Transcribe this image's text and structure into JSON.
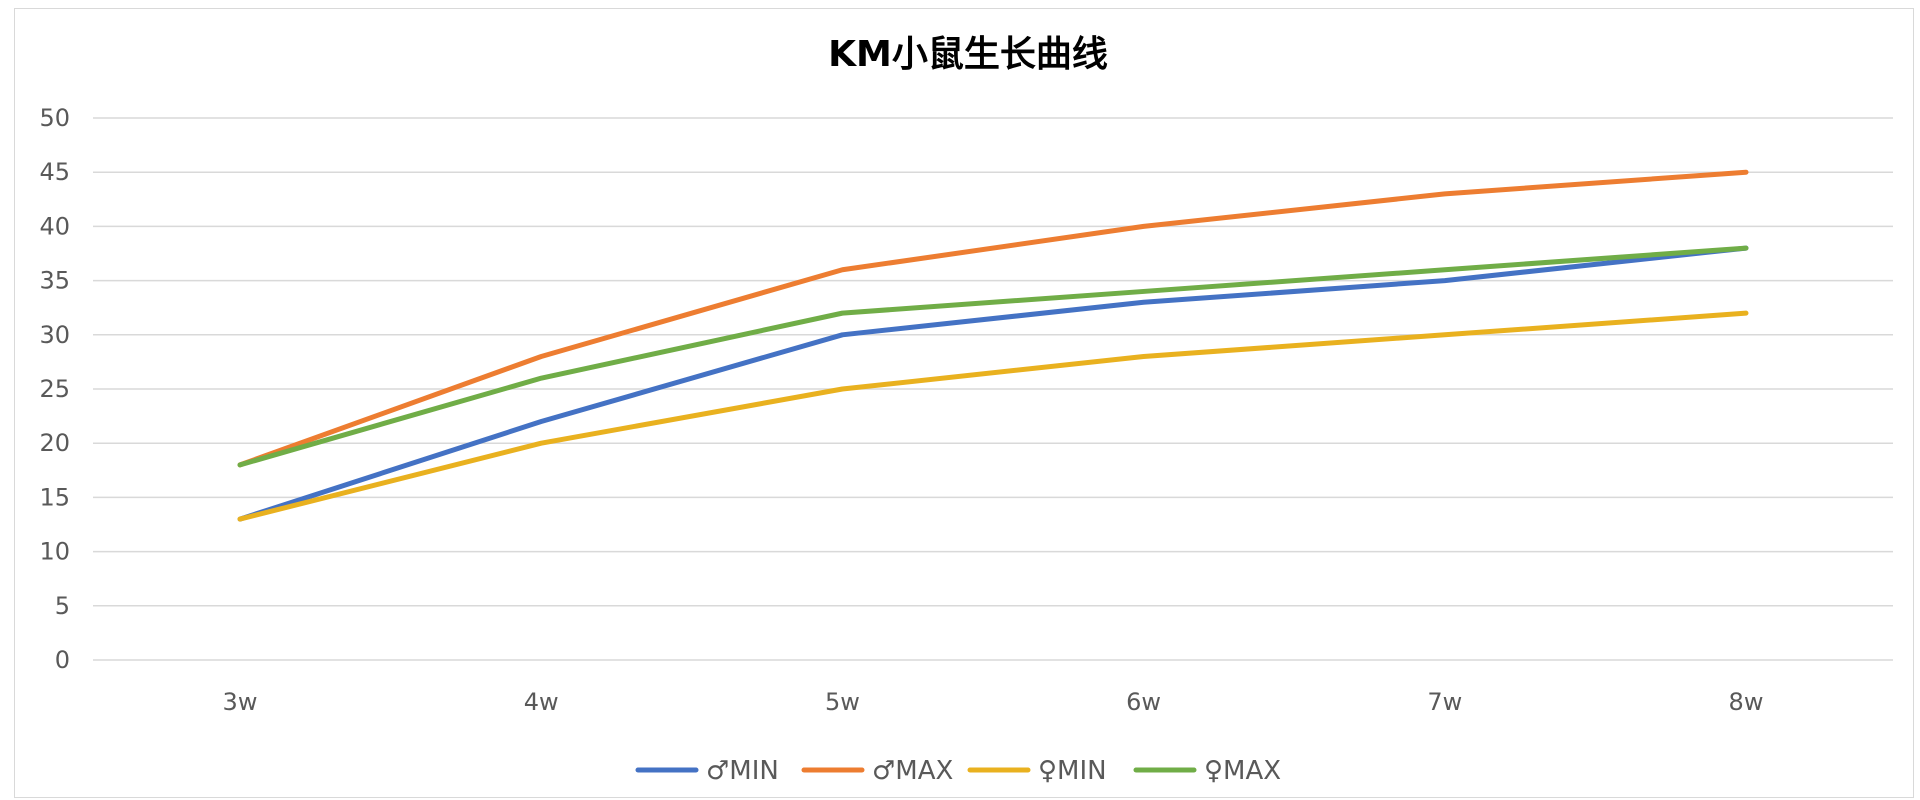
{
  "chart_data": {
    "type": "line",
    "title": "KM小鼠生长曲线",
    "xlabel": "",
    "ylabel": "",
    "categories": [
      "3w",
      "4w",
      "5w",
      "6w",
      "7w",
      "8w"
    ],
    "ylim": [
      0,
      50
    ],
    "yticks": [
      0,
      5,
      10,
      15,
      20,
      25,
      30,
      35,
      40,
      45,
      50
    ],
    "grid": true,
    "legend_position": "bottom",
    "series": [
      {
        "name": "♂MIN",
        "color": "#4472c4",
        "values": [
          13,
          22,
          30,
          33,
          35,
          38
        ]
      },
      {
        "name": "♂MAX",
        "color": "#ed7d31",
        "values": [
          18,
          28,
          36,
          40,
          43,
          45
        ]
      },
      {
        "name": "♀MIN",
        "color": "#e9b11f",
        "values": [
          13,
          20,
          25,
          28,
          30,
          32
        ]
      },
      {
        "name": "♀MAX",
        "color": "#70ad47",
        "values": [
          18,
          26,
          32,
          34,
          36,
          38
        ]
      }
    ]
  }
}
